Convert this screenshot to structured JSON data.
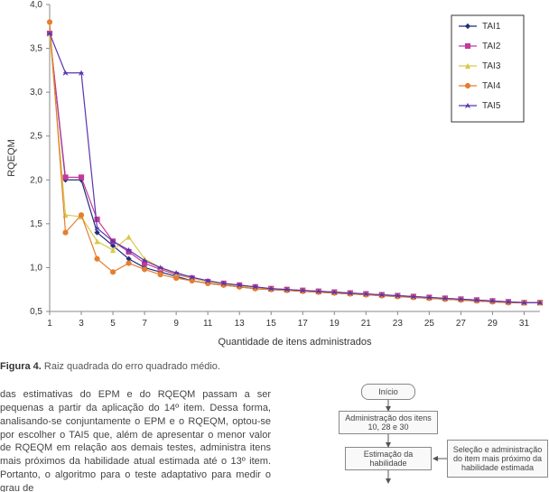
{
  "chart": {
    "type": "line",
    "ylabel": "RQEQM",
    "xlabel": "Quantidade de itens administrados",
    "xticks": [
      1,
      3,
      5,
      7,
      9,
      11,
      13,
      15,
      17,
      19,
      21,
      23,
      25,
      27,
      29,
      31
    ],
    "yticks": [
      0.5,
      1.0,
      1.5,
      2.0,
      2.5,
      3.0,
      3.5,
      4.0
    ],
    "ylim": [
      0.5,
      4.0
    ],
    "xlim": [
      1,
      32
    ],
    "label_fontsize": 11,
    "tick_fontsize": 10,
    "background_color": "#ffffff",
    "plot_border_color": "#888888",
    "legend_border_color": "#333333",
    "legend_bg": "#ffffff",
    "marker_size": 4,
    "line_width": 1.2,
    "series": [
      {
        "name": "TAI1",
        "color": "#1f2f7a",
        "marker": "diamond",
        "data": [
          3.67,
          2.0,
          2.0,
          1.4,
          1.25,
          1.1,
          1.0,
          0.95,
          0.9,
          0.85,
          0.82,
          0.8,
          0.78,
          0.76,
          0.75,
          0.74,
          0.73,
          0.72,
          0.71,
          0.7,
          0.69,
          0.68,
          0.67,
          0.66,
          0.65,
          0.64,
          0.63,
          0.62,
          0.61,
          0.6,
          0.6,
          0.6
        ]
      },
      {
        "name": "TAI2",
        "color": "#c23a9c",
        "marker": "square",
        "data": [
          3.67,
          2.03,
          2.03,
          1.55,
          1.3,
          1.18,
          1.05,
          0.98,
          0.92,
          0.88,
          0.84,
          0.82,
          0.8,
          0.78,
          0.76,
          0.75,
          0.74,
          0.73,
          0.72,
          0.71,
          0.7,
          0.69,
          0.68,
          0.67,
          0.66,
          0.65,
          0.64,
          0.63,
          0.62,
          0.61,
          0.6,
          0.6
        ]
      },
      {
        "name": "TAI3",
        "color": "#d9c84a",
        "marker": "triangle",
        "data": [
          3.67,
          1.6,
          1.58,
          1.3,
          1.2,
          1.35,
          1.1,
          1.0,
          0.93,
          0.88,
          0.84,
          0.81,
          0.79,
          0.77,
          0.76,
          0.75,
          0.74,
          0.73,
          0.72,
          0.71,
          0.7,
          0.69,
          0.68,
          0.67,
          0.66,
          0.65,
          0.64,
          0.63,
          0.62,
          0.61,
          0.6,
          0.6
        ]
      },
      {
        "name": "TAI4",
        "color": "#e57e2e",
        "marker": "circle",
        "data": [
          3.8,
          1.4,
          1.6,
          1.1,
          0.95,
          1.05,
          0.98,
          0.92,
          0.88,
          0.85,
          0.82,
          0.8,
          0.78,
          0.76,
          0.75,
          0.74,
          0.73,
          0.72,
          0.71,
          0.7,
          0.69,
          0.68,
          0.67,
          0.66,
          0.65,
          0.64,
          0.63,
          0.62,
          0.61,
          0.6,
          0.6,
          0.6
        ]
      },
      {
        "name": "TAI5",
        "color": "#5a34af",
        "marker": "star",
        "data": [
          3.67,
          3.22,
          3.22,
          1.45,
          1.3,
          1.2,
          1.08,
          1.0,
          0.94,
          0.89,
          0.85,
          0.82,
          0.8,
          0.78,
          0.76,
          0.75,
          0.74,
          0.73,
          0.72,
          0.71,
          0.7,
          0.69,
          0.68,
          0.67,
          0.66,
          0.65,
          0.64,
          0.63,
          0.62,
          0.61,
          0.6,
          0.6
        ]
      }
    ]
  },
  "caption": {
    "label": "Figura 4.",
    "text": "Raiz quadrada do erro quadrado médio."
  },
  "body_text": "das estimativas do EPM e do RQEQM passam a ser pequenas a partir da aplicação do 14º item. Dessa forma, analisando-se conjuntamente o EPM e o RQEQM, optou-se por escolher o TAI5 que, além de apresentar o menor valor de RQEQM em relação aos demais testes, administra itens mais próximos da habilidade atual estimada até o 13º item. Portanto, o algoritmo para o teste adaptativo para medir o grau de",
  "flow": {
    "box_border": "#888888",
    "box_bg": "#f9f9f9",
    "arrow_color": "#555555",
    "nodes": {
      "start": "Início",
      "admin": "Administração dos\nitens 10, 28 e 30",
      "est": "Estimação da\nhabilidade",
      "sel": "Seleção e\nadministração do item\nmais próximo da\nhabilidade estimada"
    }
  }
}
